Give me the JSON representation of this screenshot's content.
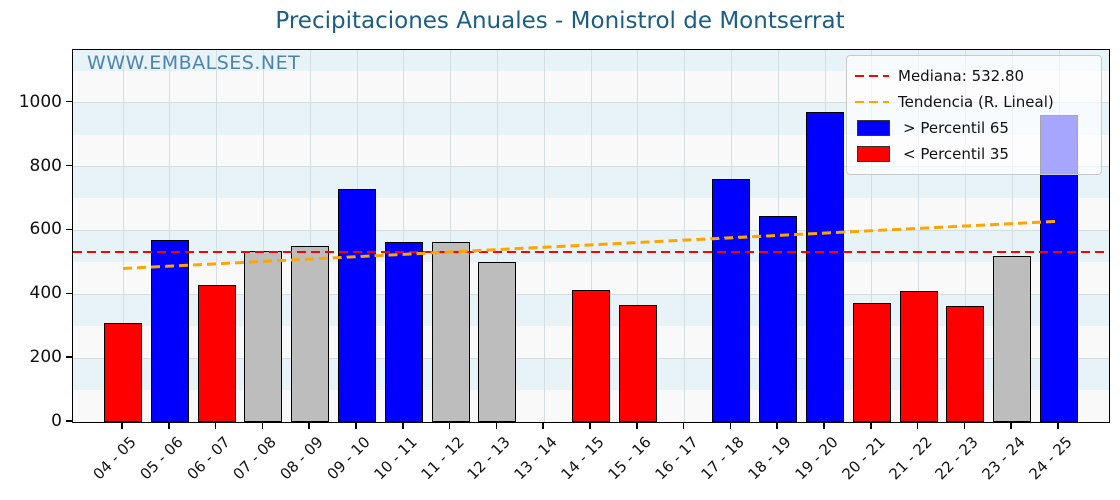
{
  "title": "Precipitaciones Anuales - Monistrol de Montserrat",
  "watermark": "WWW.EMBALSES.NET",
  "legend": {
    "median_label": "Mediana: 532.80",
    "trend_label": "Tendencia (R. Lineal)",
    "p65_label": "> Percentil 65",
    "p35_label": "< Percentil 35"
  },
  "colors": {
    "title_text": "#1b5e85",
    "watermark_text": "#4d84ad",
    "above_p65": "#0000ff",
    "below_p35": "#ff0000",
    "normal": "#bdbdbd",
    "median_line": "#ff0000",
    "trend_line": "#ffa500",
    "band_light": "#e8f3f8",
    "band_white": "#f9f9f9",
    "grid": "#d4dde2"
  },
  "chart_data": {
    "type": "bar",
    "title": "Precipitaciones Anuales - Monistrol de Montserrat",
    "xlabel": "",
    "ylabel": "",
    "categories": [
      "04 - 05",
      "05 - 06",
      "06 - 07",
      "07 - 08",
      "08 - 09",
      "09 - 10",
      "10 - 11",
      "11 - 12",
      "12 - 13",
      "13 - 14",
      "14 - 15",
      "15 - 16",
      "16 - 17",
      "17 - 18",
      "18 - 19",
      "19 - 20",
      "20 - 21",
      "21 - 22",
      "22 - 23",
      "23 - 24",
      "24 - 25"
    ],
    "values": [
      310,
      570,
      428,
      535,
      550,
      730,
      565,
      563,
      500,
      null,
      413,
      365,
      null,
      760,
      645,
      970,
      372,
      410,
      362,
      520,
      960
    ],
    "bar_classes": [
      "below_p35",
      "above_p65",
      "below_p35",
      "normal",
      "normal",
      "above_p65",
      "above_p65",
      "normal",
      "normal",
      null,
      "below_p35",
      "below_p35",
      null,
      "above_p65",
      "above_p65",
      "above_p65",
      "below_p35",
      "below_p35",
      "below_p35",
      "normal",
      "above_p65"
    ],
    "median": 532.8,
    "trend_linear": {
      "start": 481,
      "end": 629
    },
    "ylim": [
      0,
      1165
    ],
    "yticks": [
      0,
      200,
      400,
      600,
      800,
      1000
    ],
    "grid": true,
    "legend_position": "upper right",
    "legend_entries": [
      {
        "sample": "dashed-line",
        "color_key": "median_line",
        "label": "Mediana: 532.80"
      },
      {
        "sample": "dashed-line",
        "color_key": "trend_line",
        "label": "Tendencia (R. Lineal)"
      },
      {
        "sample": "patch",
        "color_key": "above_p65",
        "label": "> Percentil 65"
      },
      {
        "sample": "patch",
        "color_key": "below_p35",
        "label": "< Percentil 35"
      }
    ]
  }
}
